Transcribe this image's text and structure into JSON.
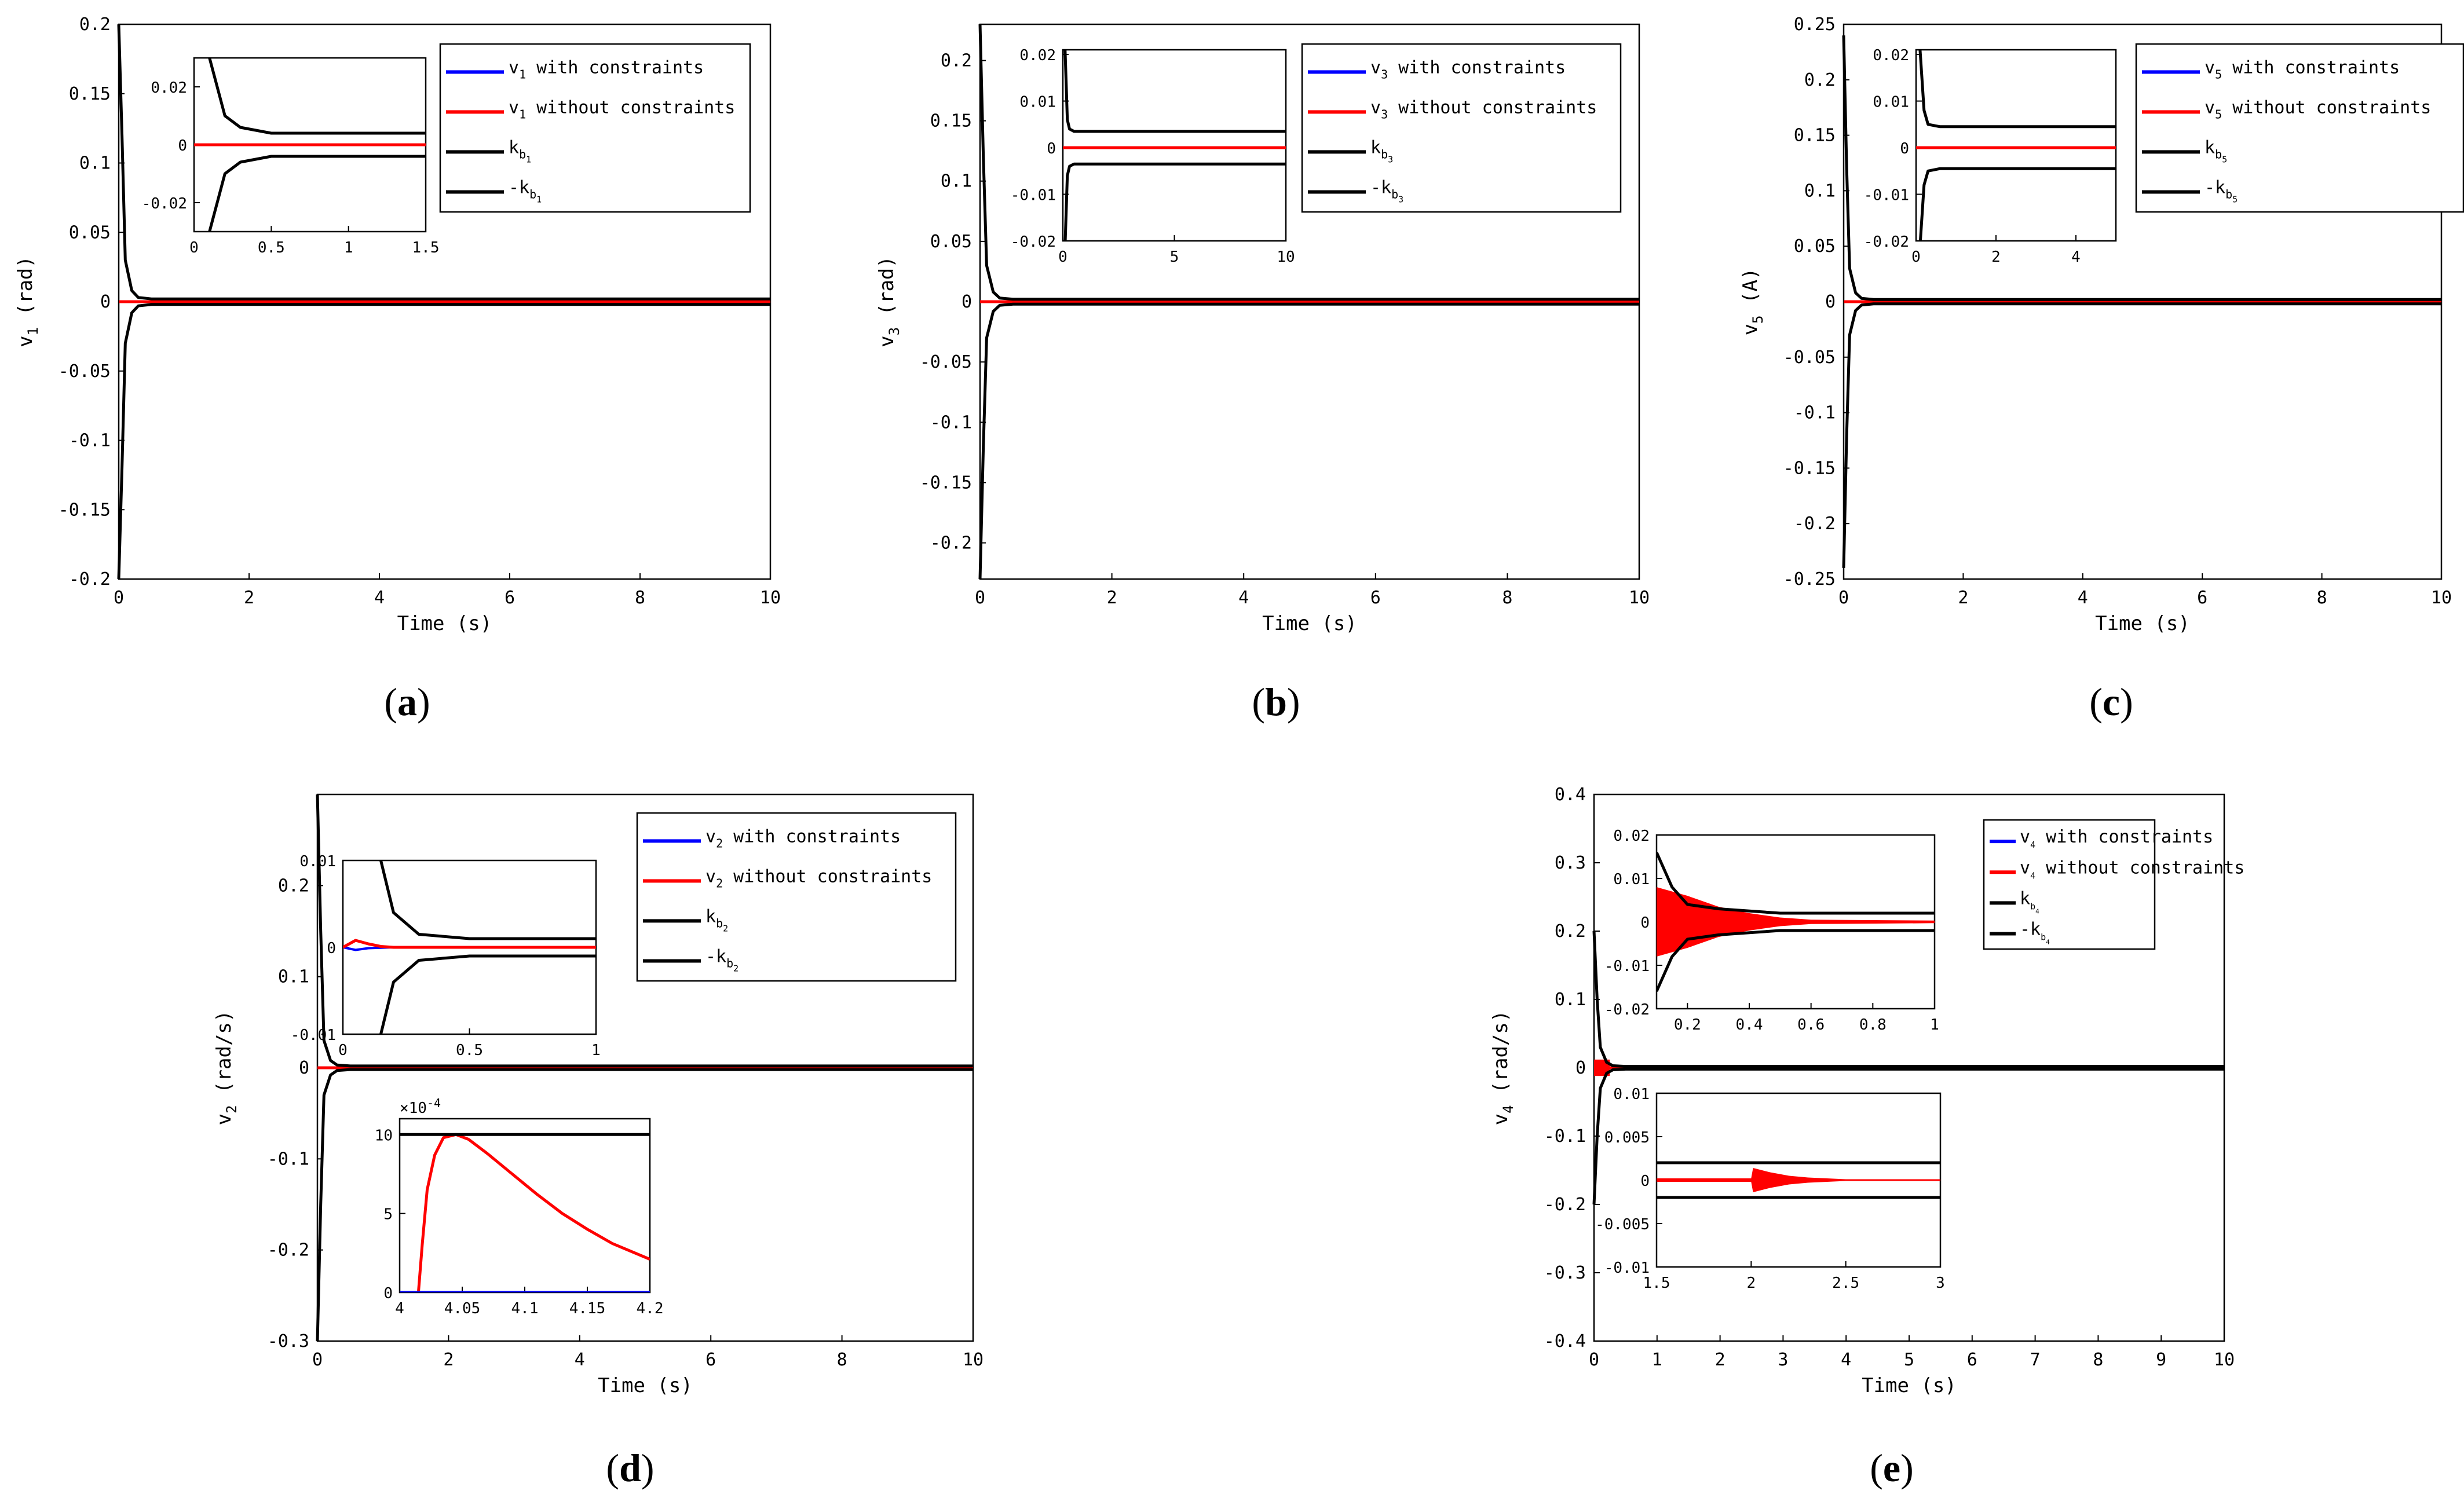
{
  "colors": {
    "blue": "#0000ff",
    "red": "#ff0000",
    "black": "#000000"
  },
  "chart_data": [
    {
      "id": "a",
      "type": "line",
      "caption": "a",
      "xlabel": "Time (s)",
      "ylabel_var": "v",
      "ylabel_sub": "1",
      "ylabel_unit": "(rad)",
      "xlim": [
        0,
        10
      ],
      "ylim": [
        -0.2,
        0.2
      ],
      "xticks": [
        0,
        2,
        4,
        6,
        8,
        10
      ],
      "xtick_labels": [
        "0",
        "2",
        "4",
        "6",
        "8",
        "10"
      ],
      "yticks": [
        -0.2,
        -0.15,
        -0.1,
        -0.05,
        0,
        0.05,
        0.1,
        0.15,
        0.2
      ],
      "ytick_labels": [
        "-0.2",
        "-0.15",
        "-0.1",
        "-0.05",
        "0",
        "0.05",
        "0.1",
        "0.15",
        "0.2"
      ],
      "bound": {
        "x": [
          0,
          0.05,
          0.1,
          0.2,
          0.3,
          0.5,
          10
        ],
        "y": [
          0.2,
          0.12,
          0.03,
          0.008,
          0.003,
          0.002,
          0.002
        ]
      },
      "legend": {
        "items": [
          {
            "var": "v",
            "sub": "1",
            "text": " with constraints",
            "color": "#0000ff"
          },
          {
            "var": "v",
            "sub": "1",
            "text": " without constraints",
            "color": "#ff0000"
          },
          {
            "var": "k",
            "sub": "b",
            "subsub": "1",
            "text": "",
            "color": "#000000"
          },
          {
            "var": "-k",
            "sub": "b",
            "subsub": "1",
            "text": "",
            "color": "#000000"
          }
        ]
      },
      "insets": [
        {
          "xlim": [
            0,
            1.5
          ],
          "ylim": [
            -0.03,
            0.03
          ],
          "xticks": [
            0,
            0.5,
            1,
            1.5
          ],
          "xtick_labels": [
            "0",
            "0.5",
            "1",
            "1.5"
          ],
          "yticks": [
            -0.02,
            0,
            0.02
          ],
          "ytick_labels": [
            "-0.02",
            "0",
            "0.02"
          ],
          "bound": {
            "x": [
              0.1,
              0.2,
              0.3,
              0.5,
              1.5
            ],
            "y": [
              0.03,
              0.01,
              0.006,
              0.004,
              0.004
            ]
          },
          "red_line": true
        }
      ]
    },
    {
      "id": "b",
      "type": "line",
      "caption": "b",
      "xlabel": "Time (s)",
      "ylabel_var": "v",
      "ylabel_sub": "3",
      "ylabel_unit": "(rad)",
      "xlim": [
        0,
        10
      ],
      "ylim": [
        -0.23,
        0.23
      ],
      "xticks": [
        0,
        2,
        4,
        6,
        8,
        10
      ],
      "xtick_labels": [
        "0",
        "2",
        "4",
        "6",
        "8",
        "10"
      ],
      "yticks": [
        -0.2,
        -0.15,
        -0.1,
        -0.05,
        0,
        0.05,
        0.1,
        0.15,
        0.2
      ],
      "ytick_labels": [
        "-0.2",
        "-0.15",
        "-0.1",
        "-0.05",
        "0",
        "0.05",
        "0.1",
        "0.15",
        "0.2"
      ],
      "bound": {
        "x": [
          0,
          0.05,
          0.1,
          0.2,
          0.3,
          0.5,
          10
        ],
        "y": [
          0.23,
          0.12,
          0.03,
          0.008,
          0.003,
          0.002,
          0.002
        ]
      },
      "legend": {
        "items": [
          {
            "var": "v",
            "sub": "3",
            "text": " with constraints",
            "color": "#0000ff"
          },
          {
            "var": "v",
            "sub": "3",
            "text": " without constraints",
            "color": "#ff0000"
          },
          {
            "var": "k",
            "sub": "b",
            "subsub": "3",
            "text": "",
            "color": "#000000"
          },
          {
            "var": "-k",
            "sub": "b",
            "subsub": "3",
            "text": "",
            "color": "#000000"
          }
        ]
      },
      "insets": [
        {
          "xlim": [
            0,
            10
          ],
          "ylim": [
            -0.02,
            0.021
          ],
          "xticks": [
            0,
            5,
            10
          ],
          "xtick_labels": [
            "0",
            "5",
            "10"
          ],
          "yticks": [
            -0.02,
            -0.01,
            0,
            0.01,
            0.02
          ],
          "ytick_labels": [
            "-0.02",
            "-0.01",
            "0",
            "0.01",
            "0.02"
          ],
          "bound": {
            "x": [
              0.1,
              0.2,
              0.3,
              0.5,
              10
            ],
            "y": [
              0.021,
              0.006,
              0.004,
              0.0035,
              0.0035
            ]
          },
          "red_line": true
        }
      ]
    },
    {
      "id": "c",
      "type": "line",
      "caption": "c",
      "xlabel": "Time (s)",
      "ylabel_var": "v",
      "ylabel_sub": "5",
      "ylabel_unit": "(A)",
      "xlim": [
        0,
        10
      ],
      "ylim": [
        -0.25,
        0.25
      ],
      "xticks": [
        0,
        2,
        4,
        6,
        8,
        10
      ],
      "xtick_labels": [
        "0",
        "2",
        "4",
        "6",
        "8",
        "10"
      ],
      "yticks": [
        -0.25,
        -0.2,
        -0.15,
        -0.1,
        -0.05,
        0,
        0.05,
        0.1,
        0.15,
        0.2,
        0.25
      ],
      "ytick_labels": [
        "-0.25",
        "-0.2",
        "-0.15",
        "-0.1",
        "-0.05",
        "0",
        "0.05",
        "0.1",
        "0.15",
        "0.2",
        "0.25"
      ],
      "bound": {
        "x": [
          0,
          0.05,
          0.1,
          0.2,
          0.3,
          0.5,
          10
        ],
        "y": [
          0.24,
          0.12,
          0.03,
          0.008,
          0.003,
          0.002,
          0.002
        ]
      },
      "legend": {
        "items": [
          {
            "var": "v",
            "sub": "5",
            "text": " with constraints",
            "color": "#0000ff"
          },
          {
            "var": "v",
            "sub": "5",
            "text": " without constraints",
            "color": "#ff0000"
          },
          {
            "var": "k",
            "sub": "b",
            "subsub": "5",
            "text": "",
            "color": "#000000"
          },
          {
            "var": "-k",
            "sub": "b",
            "subsub": "5",
            "text": "",
            "color": "#000000"
          }
        ]
      },
      "insets": [
        {
          "xlim": [
            0,
            5
          ],
          "ylim": [
            -0.02,
            0.021
          ],
          "xticks": [
            0,
            2,
            4
          ],
          "xtick_labels": [
            "0",
            "2",
            "4"
          ],
          "yticks": [
            -0.02,
            -0.01,
            0,
            0.01,
            0.02
          ],
          "ytick_labels": [
            "-0.02",
            "-0.01",
            "0",
            "0.01",
            "0.02"
          ],
          "bound": {
            "x": [
              0.1,
              0.2,
              0.3,
              0.6,
              5
            ],
            "y": [
              0.021,
              0.008,
              0.005,
              0.0045,
              0.0045
            ]
          },
          "red_line": true
        }
      ]
    },
    {
      "id": "d",
      "type": "line",
      "caption": "d",
      "xlabel": "Time (s)",
      "ylabel_var": "v",
      "ylabel_sub": "2",
      "ylabel_unit": "(rad/s)",
      "xlim": [
        0,
        10
      ],
      "ylim": [
        -0.3,
        0.3
      ],
      "xticks": [
        0,
        2,
        4,
        6,
        8,
        10
      ],
      "xtick_labels": [
        "0",
        "2",
        "4",
        "6",
        "8",
        "10"
      ],
      "yticks": [
        -0.3,
        -0.2,
        -0.1,
        0,
        0.1,
        0.2
      ],
      "ytick_labels": [
        "-0.3",
        "-0.2",
        "-0.1",
        "0",
        "0.1",
        "0.2"
      ],
      "bound": {
        "x": [
          0,
          0.05,
          0.1,
          0.2,
          0.3,
          0.5,
          10
        ],
        "y": [
          0.3,
          0.15,
          0.03,
          0.008,
          0.003,
          0.002,
          0.002
        ]
      },
      "legend": {
        "items": [
          {
            "var": "v",
            "sub": "2",
            "text": " with constraints",
            "color": "#0000ff"
          },
          {
            "var": "v",
            "sub": "2",
            "text": " without constraints",
            "color": "#ff0000"
          },
          {
            "var": "k",
            "sub": "b",
            "subsub": "2",
            "text": "",
            "color": "#000000"
          },
          {
            "var": "-k",
            "sub": "b",
            "subsub": "2",
            "text": "",
            "color": "#000000"
          }
        ]
      },
      "insets": [
        {
          "xlim": [
            0,
            1
          ],
          "ylim": [
            -0.01,
            0.01
          ],
          "xticks": [
            0,
            0.5,
            1
          ],
          "xtick_labels": [
            "0",
            "0.5",
            "1"
          ],
          "yticks": [
            -0.01,
            0,
            0.01
          ],
          "ytick_labels": [
            "-0.01",
            "0",
            "0.01"
          ],
          "bound": {
            "x": [
              0.15,
              0.2,
              0.3,
              0.5,
              1
            ],
            "y": [
              0.01,
              0.004,
              0.0015,
              0.001,
              0.001
            ]
          },
          "red_curve": {
            "x": [
              0,
              0.05,
              0.1,
              0.15,
              0.2,
              0.3,
              1
            ],
            "y": [
              0,
              0.0008,
              0.0004,
              0.0001,
              0,
              0,
              0
            ]
          },
          "blue_curve": {
            "x": [
              0,
              0.05,
              0.1,
              0.2,
              1
            ],
            "y": [
              0,
              -0.0003,
              -0.0001,
              0,
              0
            ]
          }
        },
        {
          "xlim": [
            4,
            4.2
          ],
          "ylim": [
            0,
            11
          ],
          "multiplier": "×10",
          "multiplier_exp": "-4",
          "xticks": [
            4,
            4.05,
            4.1,
            4.15,
            4.2
          ],
          "xtick_labels": [
            "4",
            "4.05",
            "4.1",
            "4.15",
            "4.2"
          ],
          "yticks": [
            0,
            5,
            10
          ],
          "ytick_labels": [
            "0",
            "5",
            "10"
          ],
          "bound_upper_only": 10,
          "red_curve": {
            "x": [
              4,
              4.015,
              4.018,
              4.022,
              4.028,
              4.035,
              4.045,
              4.055,
              4.07,
              4.09,
              4.11,
              4.13,
              4.15,
              4.17,
              4.2
            ],
            "y": [
              0,
              0,
              3.0,
              6.5,
              8.7,
              9.8,
              10,
              9.7,
              8.8,
              7.5,
              6.2,
              5.0,
              4.0,
              3.1,
              2.1
            ]
          },
          "blue_line_y": 0
        }
      ]
    },
    {
      "id": "e",
      "type": "line",
      "caption": "e",
      "xlabel": "Time (s)",
      "ylabel_var": "v",
      "ylabel_sub": "4",
      "ylabel_unit": "(rad/s)",
      "xlim": [
        0,
        10
      ],
      "ylim": [
        -0.4,
        0.4
      ],
      "xticks": [
        0,
        1,
        2,
        3,
        4,
        5,
        6,
        7,
        8,
        9,
        10
      ],
      "xtick_labels": [
        "0",
        "1",
        "2",
        "3",
        "4",
        "5",
        "6",
        "7",
        "8",
        "9",
        "10"
      ],
      "yticks": [
        -0.4,
        -0.3,
        -0.2,
        -0.1,
        0,
        0.1,
        0.2,
        0.3,
        0.4
      ],
      "ytick_labels": [
        "-0.4",
        "-0.3",
        "-0.2",
        "-0.1",
        "0",
        "0.1",
        "0.2",
        "0.3",
        "0.4"
      ],
      "bound": {
        "x": [
          0,
          0.05,
          0.1,
          0.2,
          0.3,
          0.5,
          10
        ],
        "y": [
          0.2,
          0.1,
          0.03,
          0.008,
          0.003,
          0.002,
          0.002
        ]
      },
      "legend": {
        "items": [
          {
            "var": "v",
            "sub": "4",
            "text": " with constraints",
            "color": "#0000ff"
          },
          {
            "var": "v",
            "sub": "4",
            "text": " without constraints",
            "color": "#ff0000"
          },
          {
            "var": "k",
            "sub": "b",
            "subsub": "4",
            "text": "",
            "color": "#000000"
          },
          {
            "var": "-k",
            "sub": "b",
            "subsub": "4",
            "text": "",
            "color": "#000000"
          }
        ]
      },
      "insets": [
        {
          "xlim": [
            0.1,
            1
          ],
          "ylim": [
            -0.02,
            0.02
          ],
          "xticks": [
            0.2,
            0.4,
            0.6,
            0.8,
            1
          ],
          "xtick_labels": [
            "0.2",
            "0.4",
            "0.6",
            "0.8",
            "1"
          ],
          "yticks": [
            -0.02,
            -0.01,
            0,
            0.01,
            0.02
          ],
          "ytick_labels": [
            "-0.02",
            "-0.01",
            "0",
            "0.01",
            "0.02"
          ],
          "bound": {
            "x": [
              0.1,
              0.15,
              0.2,
              0.3,
              0.5,
              1
            ],
            "y": [
              0.016,
              0.008,
              0.004,
              0.003,
              0.002,
              0.002
            ]
          },
          "red_band": {
            "x": [
              0.1,
              0.2,
              0.3,
              0.4,
              0.5,
              0.6,
              1
            ],
            "amp": [
              0.008,
              0.006,
              0.0035,
              0.002,
              0.001,
              0.0005,
              0.0003
            ]
          }
        },
        {
          "xlim": [
            1.5,
            3
          ],
          "ylim": [
            -0.01,
            0.01
          ],
          "xticks": [
            1.5,
            2,
            2.5,
            3
          ],
          "xtick_labels": [
            "1.5",
            "2",
            "2.5",
            "3"
          ],
          "yticks": [
            -0.01,
            -0.005,
            0,
            0.005,
            0.01
          ],
          "ytick_labels": [
            "-0.01",
            "-0.005",
            "0",
            "0.005",
            "0.01"
          ],
          "bound_flat": 0.002,
          "red_band": {
            "x": [
              1.5,
              2.0,
              2.01,
              2.1,
              2.2,
              2.3,
              2.5,
              3
            ],
            "amp": [
              0.0002,
              0.0002,
              0.0014,
              0.0009,
              0.0005,
              0.0003,
              0.0001,
              0.0001
            ]
          }
        }
      ]
    }
  ]
}
